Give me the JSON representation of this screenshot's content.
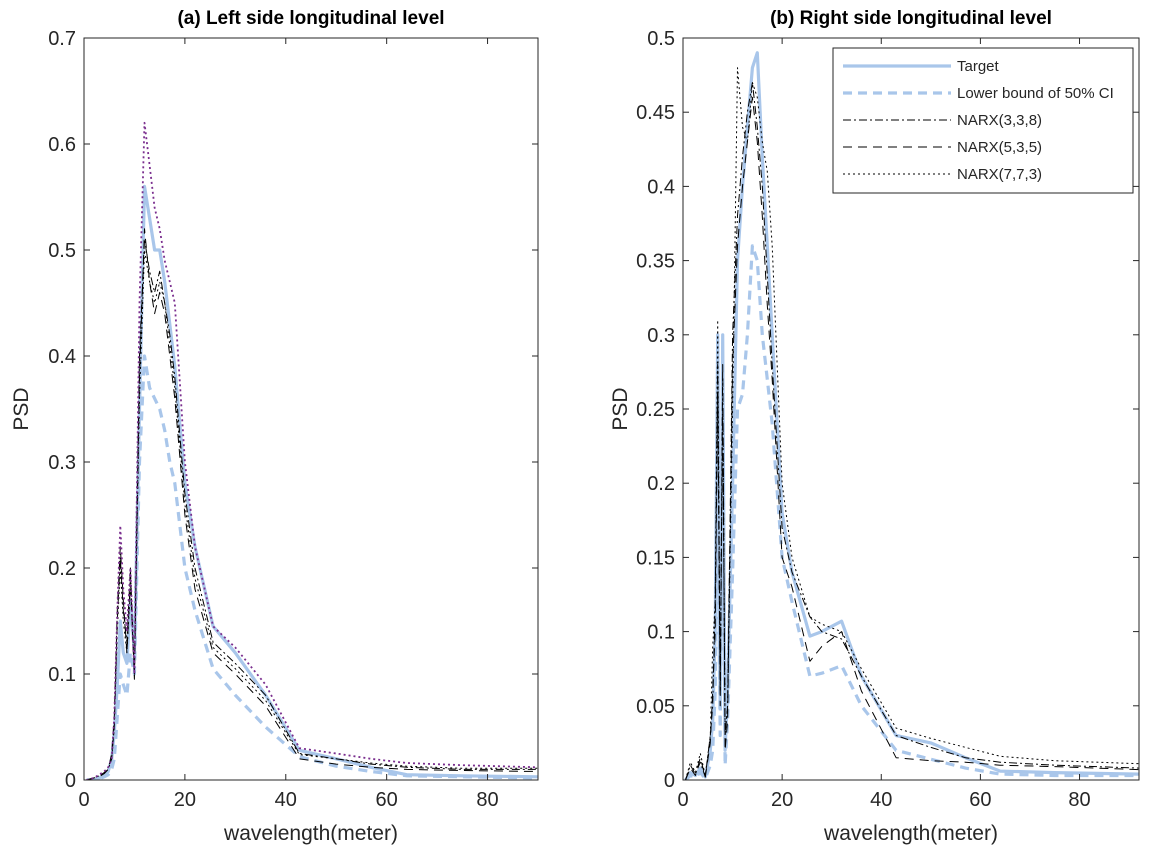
{
  "chart_data": [
    {
      "type": "line",
      "title": "(a) Left side longitudinal level",
      "xlabel": "wavelength(meter)",
      "ylabel": "PSD",
      "xlim": [
        0,
        90
      ],
      "ylim": [
        0,
        0.7
      ],
      "xticks": [
        0,
        20,
        40,
        60,
        80
      ],
      "yticks": [
        0,
        0.1,
        0.2,
        0.3,
        0.4,
        0.5,
        0.6,
        0.7
      ],
      "xtick_labels": [
        "0",
        "20",
        "40",
        "60",
        "80"
      ],
      "ytick_labels": [
        "0",
        "0.1",
        "0.2",
        "0.3",
        "0.4",
        "0.5",
        "0.6",
        "0.7"
      ],
      "grid": false,
      "legend": null,
      "series": [
        {
          "color": "#a9c6ea",
          "style": "solid",
          "x": [
            0.5,
            2,
            3,
            4,
            4.8,
            5.5,
            6,
            6.6,
            7.2,
            7.8,
            8.5,
            9.2,
            10,
            11,
            12,
            13,
            14,
            15,
            16,
            17,
            18,
            20,
            22,
            25.6,
            30,
            36,
            42.7,
            50,
            56.9,
            64,
            75,
            90
          ],
          "y": [
            0,
            0,
            0.002,
            0.004,
            0.008,
            0.02,
            0.045,
            0.09,
            0.15,
            0.12,
            0.11,
            0.17,
            0.12,
            0.35,
            0.56,
            0.53,
            0.5,
            0.5,
            0.47,
            0.43,
            0.39,
            0.28,
            0.22,
            0.145,
            0.12,
            0.08,
            0.028,
            0.02,
            0.012,
            0.005,
            0.004,
            0.003
          ]
        },
        {
          "color": "#a9c6ea",
          "style": "dashed",
          "x": [
            0.5,
            2,
            3,
            4,
            4.8,
            5.5,
            6,
            6.6,
            7.2,
            7.8,
            8.5,
            9.2,
            10,
            11,
            12,
            13,
            14,
            15,
            16,
            17,
            18,
            20,
            22,
            25.6,
            30,
            36,
            42.7,
            50,
            56.9,
            64,
            75,
            90
          ],
          "y": [
            0,
            0,
            0.001,
            0.003,
            0.005,
            0.01,
            0.02,
            0.06,
            0.1,
            0.09,
            0.08,
            0.12,
            0.1,
            0.3,
            0.4,
            0.37,
            0.36,
            0.35,
            0.33,
            0.3,
            0.28,
            0.2,
            0.16,
            0.105,
            0.08,
            0.05,
            0.022,
            0.013,
            0.008,
            0.004,
            0.003,
            0.002
          ]
        },
        {
          "color": "#000000",
          "style": "dashdot",
          "x": [
            0.5,
            2,
            3,
            4,
            4.8,
            5.5,
            6,
            6.6,
            7.2,
            7.8,
            8.5,
            9.2,
            10,
            11,
            12,
            13,
            14,
            15,
            16,
            17,
            18,
            20,
            22,
            25.6,
            30,
            36,
            42.7,
            50,
            56.9,
            64,
            75,
            90
          ],
          "y": [
            0,
            0.002,
            0.004,
            0.007,
            0.01,
            0.02,
            0.05,
            0.15,
            0.21,
            0.16,
            0.13,
            0.2,
            0.1,
            0.4,
            0.51,
            0.48,
            0.46,
            0.48,
            0.45,
            0.42,
            0.38,
            0.27,
            0.2,
            0.13,
            0.11,
            0.08,
            0.025,
            0.02,
            0.015,
            0.012,
            0.01,
            0.01
          ]
        },
        {
          "color": "#000000",
          "style": "dashed",
          "x": [
            0.5,
            2,
            3,
            4,
            4.8,
            5.5,
            6,
            6.6,
            7.2,
            7.8,
            8.5,
            9.2,
            10,
            11,
            12,
            13,
            14,
            15,
            16,
            17,
            18,
            20,
            22,
            25.6,
            30,
            36,
            42.7,
            50,
            56.9,
            64,
            75,
            90
          ],
          "y": [
            0,
            0.002,
            0.003,
            0.006,
            0.01,
            0.025,
            0.06,
            0.16,
            0.22,
            0.17,
            0.12,
            0.19,
            0.095,
            0.38,
            0.52,
            0.47,
            0.44,
            0.46,
            0.44,
            0.4,
            0.36,
            0.25,
            0.18,
            0.12,
            0.1,
            0.07,
            0.02,
            0.015,
            0.012,
            0.01,
            0.009,
            0.008
          ]
        },
        {
          "color": "#000000",
          "style": "dotted",
          "x": [
            0.5,
            2,
            3,
            4,
            4.8,
            5.5,
            6,
            6.6,
            7.2,
            7.8,
            8.5,
            9.2,
            10,
            11,
            12,
            13,
            14,
            15,
            16,
            17,
            18,
            20,
            22,
            25.6,
            30,
            36,
            42.7,
            50,
            56.9,
            64,
            75,
            90
          ],
          "y": [
            0,
            0.002,
            0.004,
            0.007,
            0.012,
            0.02,
            0.05,
            0.14,
            0.2,
            0.15,
            0.12,
            0.18,
            0.1,
            0.36,
            0.5,
            0.47,
            0.45,
            0.47,
            0.45,
            0.41,
            0.37,
            0.26,
            0.19,
            0.125,
            0.105,
            0.075,
            0.024,
            0.02,
            0.016,
            0.013,
            0.011,
            0.011
          ]
        },
        {
          "color": "#7a2e8e",
          "style": "dotted",
          "x": [
            0.5,
            2,
            3,
            4,
            4.8,
            5.5,
            6,
            6.6,
            7.2,
            7.8,
            8.5,
            9.2,
            10,
            11,
            12,
            13,
            14,
            15,
            16,
            17,
            18,
            20,
            22,
            25.6,
            30,
            36,
            42.7,
            50,
            56.9,
            64,
            75,
            90
          ],
          "y": [
            0,
            0.002,
            0.005,
            0.008,
            0.012,
            0.02,
            0.06,
            0.16,
            0.24,
            0.18,
            0.14,
            0.2,
            0.1,
            0.45,
            0.62,
            0.58,
            0.54,
            0.52,
            0.49,
            0.47,
            0.45,
            0.3,
            0.22,
            0.145,
            0.125,
            0.09,
            0.03,
            0.025,
            0.02,
            0.016,
            0.014,
            0.012
          ]
        }
      ]
    },
    {
      "type": "line",
      "title": "(b) Right side longitudinal level",
      "xlabel": "wavelength(meter)",
      "ylabel": "PSD",
      "xlim": [
        0,
        92
      ],
      "ylim": [
        0,
        0.5
      ],
      "xticks": [
        0,
        20,
        40,
        60,
        80
      ],
      "yticks": [
        0,
        0.05,
        0.1,
        0.15,
        0.2,
        0.25,
        0.3,
        0.35,
        0.4,
        0.45,
        0.5
      ],
      "xtick_labels": [
        "0",
        "20",
        "40",
        "60",
        "80"
      ],
      "ytick_labels": [
        "0",
        "0.05",
        "0.1",
        "0.15",
        "0.2",
        "0.25",
        "0.3",
        "0.35",
        "0.4",
        "0.45",
        "0.5"
      ],
      "grid": false,
      "legend": "top-right",
      "series": [
        {
          "name": "Target",
          "color": "#a9c6ea",
          "style": "solid",
          "x": [
            0.5,
            1.5,
            2.5,
            3.5,
            4.5,
            5.5,
            6,
            6.5,
            7,
            7.5,
            8,
            8.5,
            9,
            10,
            11,
            12,
            13,
            14,
            15,
            16,
            17,
            18,
            20,
            22,
            25.6,
            28,
            32,
            36,
            43,
            50,
            57,
            64,
            75,
            92
          ],
          "y": [
            0,
            0.005,
            0.003,
            0.008,
            0.002,
            0.02,
            0.04,
            0.1,
            0.3,
            0.05,
            0.3,
            0.02,
            0.06,
            0.2,
            0.35,
            0.4,
            0.44,
            0.48,
            0.49,
            0.42,
            0.36,
            0.3,
            0.18,
            0.14,
            0.097,
            0.1,
            0.107,
            0.07,
            0.03,
            0.025,
            0.015,
            0.006,
            0.005,
            0.004
          ]
        },
        {
          "name": "Lower bound of 50% CI",
          "color": "#a9c6ea",
          "style": "dashed",
          "x": [
            0.5,
            1.5,
            2.5,
            3.5,
            4.5,
            5.5,
            6,
            6.5,
            7,
            7.5,
            8,
            8.5,
            9,
            10,
            11,
            12,
            13,
            14,
            15,
            16,
            17,
            18,
            20,
            22,
            25.6,
            28,
            32,
            36,
            43,
            50,
            57,
            64,
            75,
            92
          ],
          "y": [
            0,
            0.003,
            0.002,
            0.005,
            0.001,
            0.01,
            0.02,
            0.06,
            0.2,
            0.03,
            0.24,
            0.01,
            0.04,
            0.14,
            0.25,
            0.26,
            0.3,
            0.36,
            0.35,
            0.3,
            0.27,
            0.24,
            0.15,
            0.12,
            0.07,
            0.072,
            0.077,
            0.05,
            0.02,
            0.014,
            0.008,
            0.004,
            0.003,
            0.003
          ]
        },
        {
          "name": "NARX(3,3,8)",
          "color": "#000000",
          "style": "dashdot",
          "x": [
            0.5,
            1.5,
            2.5,
            3.5,
            4.5,
            5.5,
            6,
            6.5,
            7,
            7.5,
            8,
            8.5,
            9,
            10,
            11,
            12,
            13,
            14,
            15,
            16,
            17,
            18,
            20,
            22,
            25.6,
            28,
            32,
            36,
            43,
            50,
            57,
            64,
            75,
            92
          ],
          "y": [
            0,
            0.01,
            0.004,
            0.012,
            0.002,
            0.03,
            0.05,
            0.12,
            0.28,
            0.06,
            0.25,
            0.03,
            0.05,
            0.3,
            0.38,
            0.42,
            0.45,
            0.47,
            0.44,
            0.4,
            0.34,
            0.28,
            0.17,
            0.14,
            0.11,
            0.1,
            0.095,
            0.07,
            0.03,
            0.022,
            0.015,
            0.012,
            0.01,
            0.008
          ]
        },
        {
          "name": "NARX(5,3,5)",
          "color": "#000000",
          "style": "dashed",
          "x": [
            0.5,
            1.5,
            2.5,
            3.5,
            4.5,
            5.5,
            6,
            6.5,
            7,
            7.5,
            8,
            8.5,
            9,
            10,
            11,
            12,
            13,
            14,
            15,
            16,
            17,
            18,
            20,
            22,
            25.6,
            28,
            32,
            36,
            43,
            50,
            57,
            64,
            75,
            92
          ],
          "y": [
            0,
            0.008,
            0.003,
            0.015,
            0.002,
            0.025,
            0.06,
            0.1,
            0.26,
            0.05,
            0.28,
            0.02,
            0.04,
            0.28,
            0.36,
            0.4,
            0.43,
            0.46,
            0.43,
            0.38,
            0.32,
            0.27,
            0.15,
            0.13,
            0.08,
            0.09,
            0.1,
            0.06,
            0.015,
            0.013,
            0.012,
            0.01,
            0.009,
            0.007
          ]
        },
        {
          "name": "NARX(7,7,3)",
          "color": "#000000",
          "style": "dotted",
          "x": [
            0.5,
            1.5,
            2.5,
            3.5,
            4.5,
            5.5,
            6,
            6.5,
            7,
            7.5,
            8,
            8.5,
            9,
            10,
            11,
            12,
            13,
            14,
            15,
            16,
            17,
            18,
            20,
            22,
            25.6,
            28,
            32,
            36,
            43,
            50,
            57,
            64,
            75,
            92
          ],
          "y": [
            0,
            0.012,
            0.005,
            0.018,
            0.003,
            0.03,
            0.09,
            0.12,
            0.31,
            0.06,
            0.27,
            0.03,
            0.05,
            0.25,
            0.48,
            0.44,
            0.43,
            0.47,
            0.46,
            0.43,
            0.41,
            0.36,
            0.2,
            0.15,
            0.11,
            0.105,
            0.1,
            0.075,
            0.035,
            0.028,
            0.022,
            0.016,
            0.013,
            0.011
          ]
        }
      ]
    }
  ]
}
